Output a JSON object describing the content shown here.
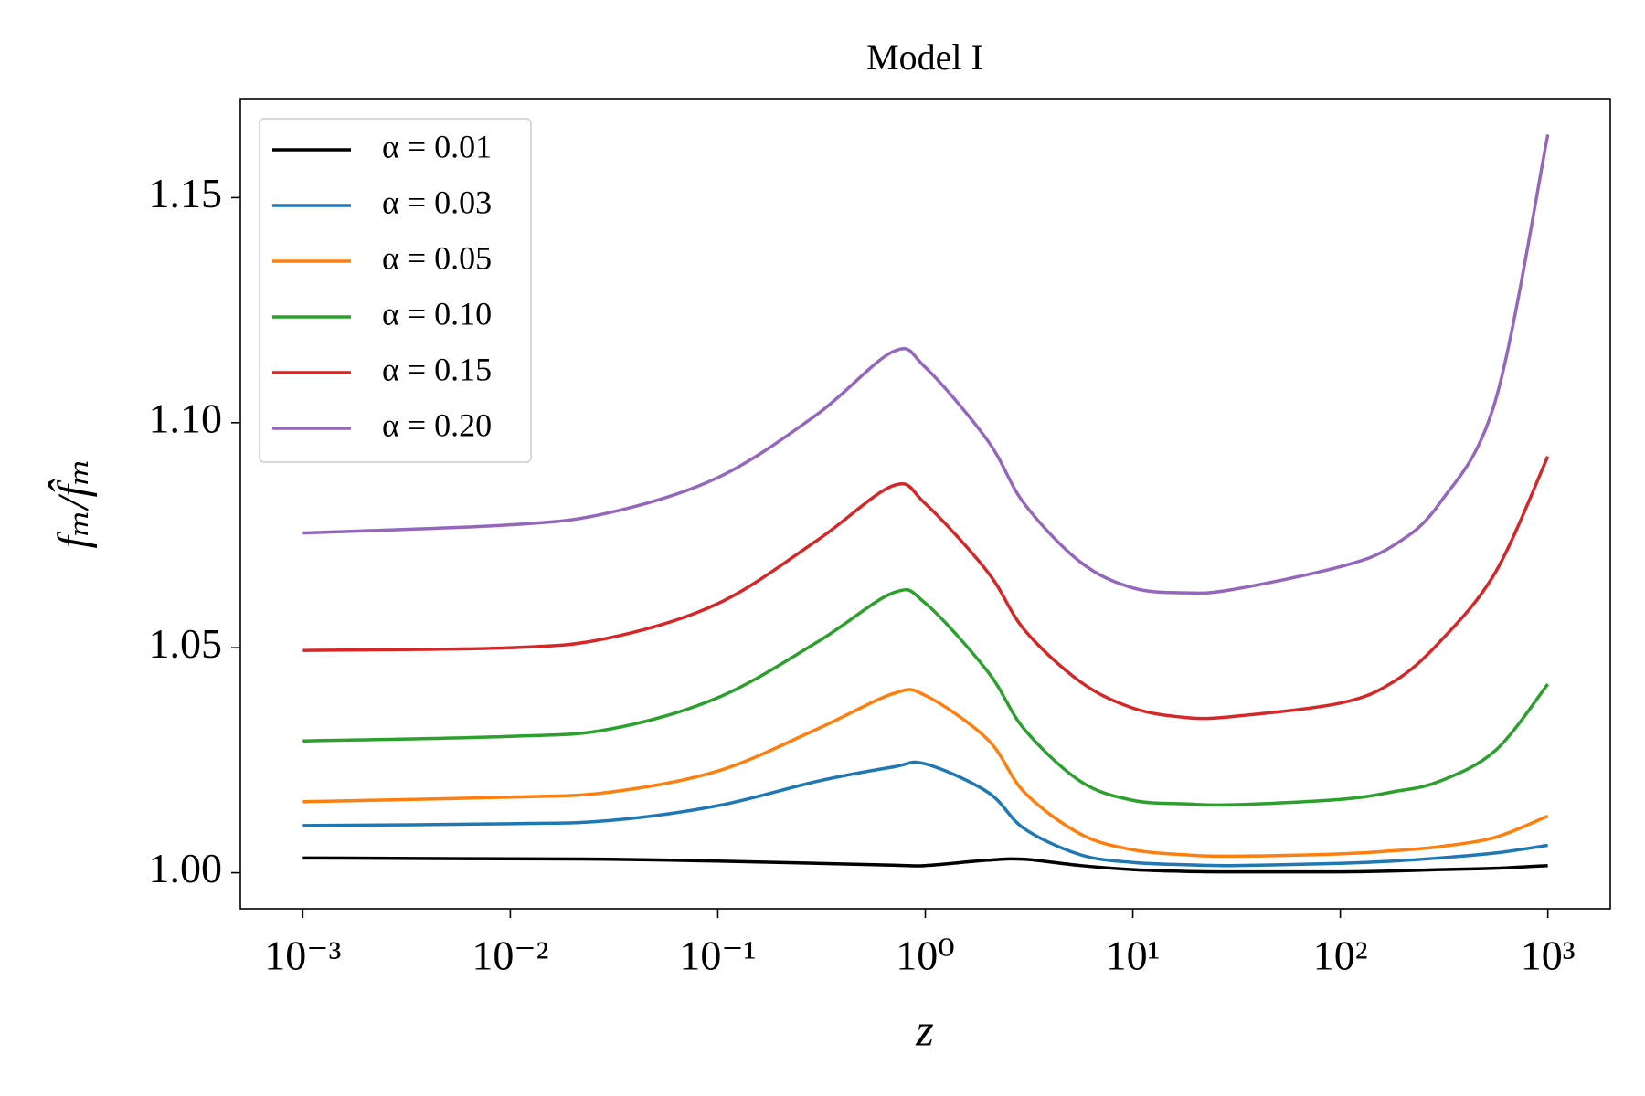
{
  "chart_data": {
    "type": "line",
    "title": "Model I",
    "xlabel": "z",
    "ylabel": "fₘ/f̂ₘ",
    "xscale": "log",
    "legend": "upper left",
    "grid": false,
    "xlim": [
      0.0005,
      2000
    ],
    "ylim": [
      0.992,
      1.172
    ],
    "xticks": [
      {
        "value": 0.001,
        "label": "10⁻³"
      },
      {
        "value": 0.01,
        "label": "10⁻²"
      },
      {
        "value": 0.1,
        "label": "10⁻¹"
      },
      {
        "value": 1,
        "label": "10⁰"
      },
      {
        "value": 10,
        "label": "10¹"
      },
      {
        "value": 100,
        "label": "10²"
      },
      {
        "value": 1000,
        "label": "10³"
      }
    ],
    "yticks": [
      {
        "value": 1,
        "label": "1.00"
      },
      1.05,
      {
        "value": 1.1,
        "label": "1.10"
      },
      1.15
    ],
    "x": [
      0.001,
      0.01,
      0.03,
      0.1,
      0.3,
      0.7,
      1,
      2,
      3,
      5.6,
      10,
      18,
      30,
      100,
      180,
      300,
      560,
      1000
    ],
    "series": [
      {
        "name": "α = 0.01",
        "color": "#000000",
        "values": [
          1.0033,
          1.0031,
          1.003,
          1.0026,
          1.0021,
          1.0017,
          1.0016,
          1.0028,
          1.003,
          1.0016,
          1.0007,
          1.0003,
          1.0002,
          1.0002,
          1.0004,
          1.0007,
          1.001,
          1.0016
        ]
      },
      {
        "name": "α = 0.03",
        "color": "#1f77b4",
        "values": [
          1.0105,
          1.0109,
          1.0116,
          1.0149,
          1.0203,
          1.0235,
          1.0242,
          1.0179,
          1.0098,
          1.004,
          1.0023,
          1.0018,
          1.0016,
          1.0021,
          1.0026,
          1.0033,
          1.0044,
          1.0061
        ]
      },
      {
        "name": "α = 0.05",
        "color": "#ff7f0e",
        "values": [
          1.0158,
          1.0168,
          1.0179,
          1.0226,
          1.0319,
          1.0398,
          1.0394,
          1.0296,
          1.0179,
          1.0086,
          1.0051,
          1.004,
          1.0037,
          1.0042,
          1.0049,
          1.0058,
          1.0079,
          1.0126
        ]
      },
      {
        "name": "α = 0.10",
        "color": "#2ca02c",
        "values": [
          1.0293,
          1.0303,
          1.0319,
          1.0389,
          1.0512,
          1.0622,
          1.0599,
          1.0447,
          1.0319,
          1.0203,
          1.0161,
          1.0153,
          1.0151,
          1.0163,
          1.018,
          1.0203,
          1.0272,
          1.0419
        ]
      },
      {
        "name": "α = 0.15",
        "color": "#d62728",
        "values": [
          1.0494,
          1.05,
          1.0522,
          1.0598,
          1.0738,
          1.086,
          1.082,
          1.0668,
          1.054,
          1.0424,
          1.0366,
          1.0345,
          1.0347,
          1.0377,
          1.0424,
          1.0512,
          1.0668,
          1.0925
        ]
      },
      {
        "name": "α = 0.20",
        "color": "#9467bd",
        "values": [
          1.0755,
          1.0773,
          1.08,
          1.0878,
          1.1018,
          1.1158,
          1.1123,
          1.096,
          1.082,
          1.069,
          1.0633,
          1.0622,
          1.0629,
          1.068,
          1.0727,
          1.082,
          1.105,
          1.164
        ]
      }
    ]
  }
}
